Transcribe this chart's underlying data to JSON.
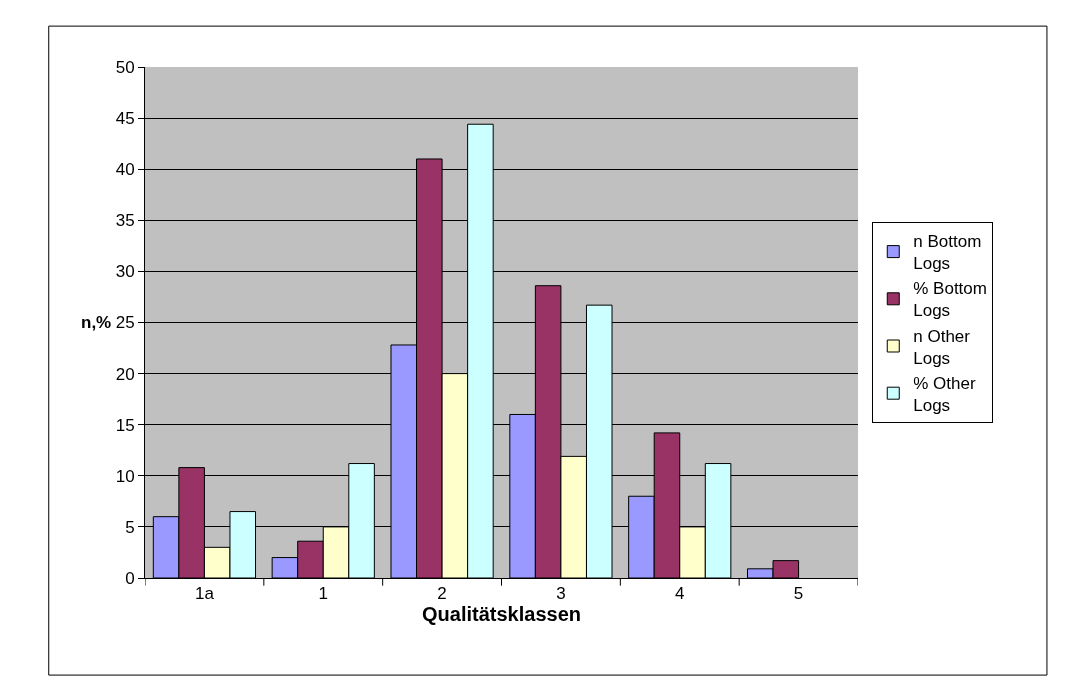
{
  "chart_data": {
    "type": "bar",
    "xlabel": "Qualitätsklassen",
    "ylabel": "n,%",
    "categories": [
      "1a",
      "1",
      "2",
      "3",
      "4",
      "5"
    ],
    "series": [
      {
        "name": "n Bottom Logs",
        "color": "#9999ff",
        "values": [
          6,
          2,
          22.8,
          16,
          8,
          0.9
        ]
      },
      {
        "name": "% Bottom Logs",
        "color": "#993366",
        "values": [
          10.8,
          3.6,
          41,
          28.6,
          14.2,
          1.7
        ]
      },
      {
        "name": "n Other Logs",
        "color": "#ffffcc",
        "values": [
          3,
          5,
          20,
          11.9,
          5,
          null
        ]
      },
      {
        "name": "% Other Logs",
        "color": "#ccffff",
        "values": [
          6.5,
          11.2,
          44.4,
          26.7,
          11.2,
          null
        ]
      }
    ],
    "ylim": [
      0,
      50
    ],
    "yticks": [
      0,
      5,
      10,
      15,
      20,
      25,
      30,
      35,
      40,
      45,
      50
    ],
    "grid": "y",
    "legend": "right"
  }
}
